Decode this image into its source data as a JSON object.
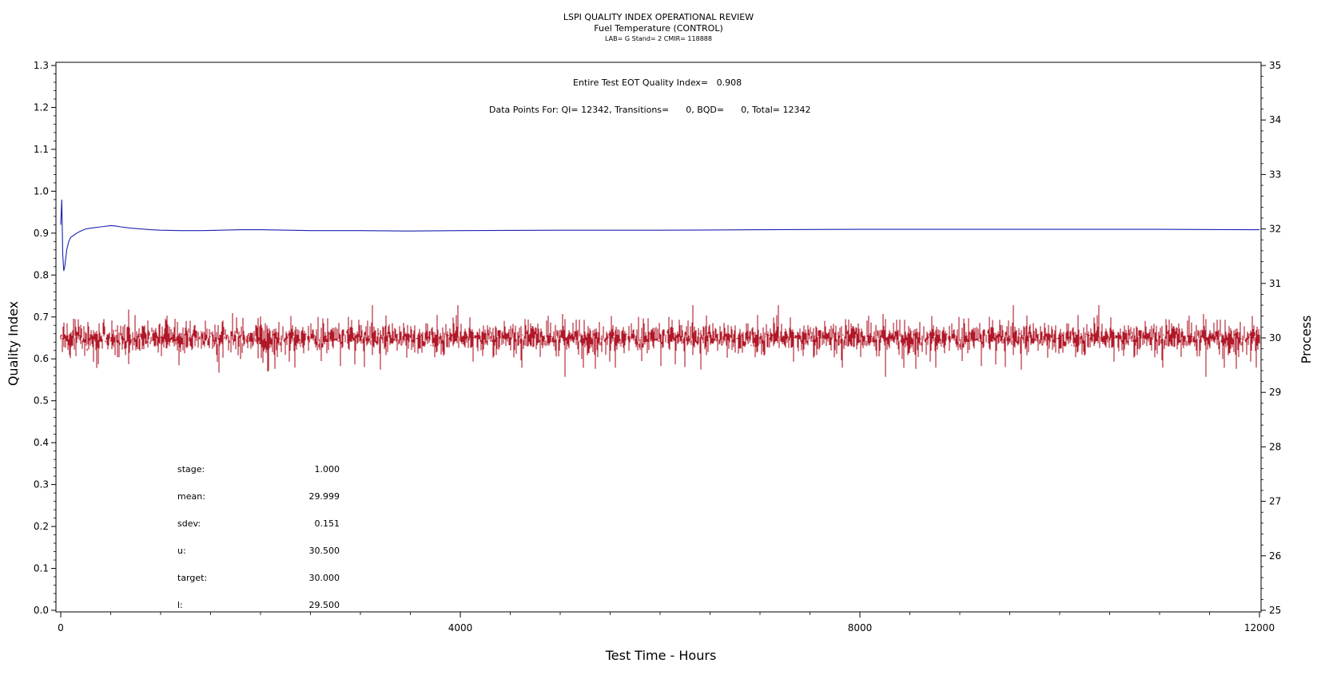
{
  "chart_data": {
    "type": "line",
    "title": "LSPI QUALITY INDEX OPERATIONAL REVIEW",
    "subtitle": "Fuel Temperature (CONTROL)",
    "subtitle2": "LAB= G Stand= 2 CMIR= 118888",
    "xlabel": "Test Time - Hours",
    "ylabel_left": "Quality Index",
    "ylabel_right": "Process",
    "xlim": [
      0,
      12000
    ],
    "ylim_left": [
      0.0,
      1.3
    ],
    "ylim_right": [
      25,
      35
    ],
    "x_ticks": [
      "0",
      "4000",
      "8000",
      "12000"
    ],
    "y_ticks_left": [
      "0.0",
      "0.1",
      "0.2",
      "0.3",
      "0.4",
      "0.5",
      "0.6",
      "0.7",
      "0.8",
      "0.9",
      "1.0",
      "1.1",
      "1.2",
      "1.3"
    ],
    "y_ticks_right": [
      "25",
      "26",
      "27",
      "28",
      "29",
      "30",
      "31",
      "32",
      "33",
      "34",
      "35"
    ],
    "annotations": [
      "Entire Test EOT Quality Index=   0.908",
      "Data Points For: QI= 12342, Transitions=      0, BQD=      0, Total= 12342"
    ],
    "series": [
      {
        "axis": "left",
        "color": "#1a22b0",
        "x": [
          0,
          10,
          20,
          30,
          40,
          60,
          80,
          100,
          130,
          160,
          200,
          250,
          300,
          400,
          500,
          550,
          600,
          700,
          800,
          900,
          1000,
          1200,
          1400,
          1600,
          1800,
          2000,
          2500,
          3000,
          3500,
          4000,
          5000,
          6000,
          7000,
          8000,
          9000,
          10000,
          10500,
          11000,
          12000
        ],
        "values": [
          0.92,
          0.98,
          0.85,
          0.81,
          0.82,
          0.86,
          0.88,
          0.89,
          0.895,
          0.9,
          0.905,
          0.91,
          0.912,
          0.915,
          0.918,
          0.917,
          0.915,
          0.912,
          0.91,
          0.908,
          0.907,
          0.906,
          0.906,
          0.907,
          0.908,
          0.908,
          0.906,
          0.906,
          0.905,
          0.906,
          0.907,
          0.907,
          0.908,
          0.909,
          0.909,
          0.909,
          0.909,
          0.909,
          0.908
        ]
      },
      {
        "axis": "right",
        "color": "#b01828",
        "approx_mean": 29.999,
        "approx_range": [
          29.2,
          30.6
        ],
        "points": 12342
      }
    ],
    "stats": [
      {
        "label": "stage:",
        "value": "1.000"
      },
      {
        "label": "mean:",
        "value": "29.999"
      },
      {
        "label": "sdev:",
        "value": "0.151"
      },
      {
        "label": "u:",
        "value": "30.500"
      },
      {
        "label": "target:",
        "value": "30.000"
      },
      {
        "label": "l:",
        "value": "29.500"
      }
    ]
  }
}
